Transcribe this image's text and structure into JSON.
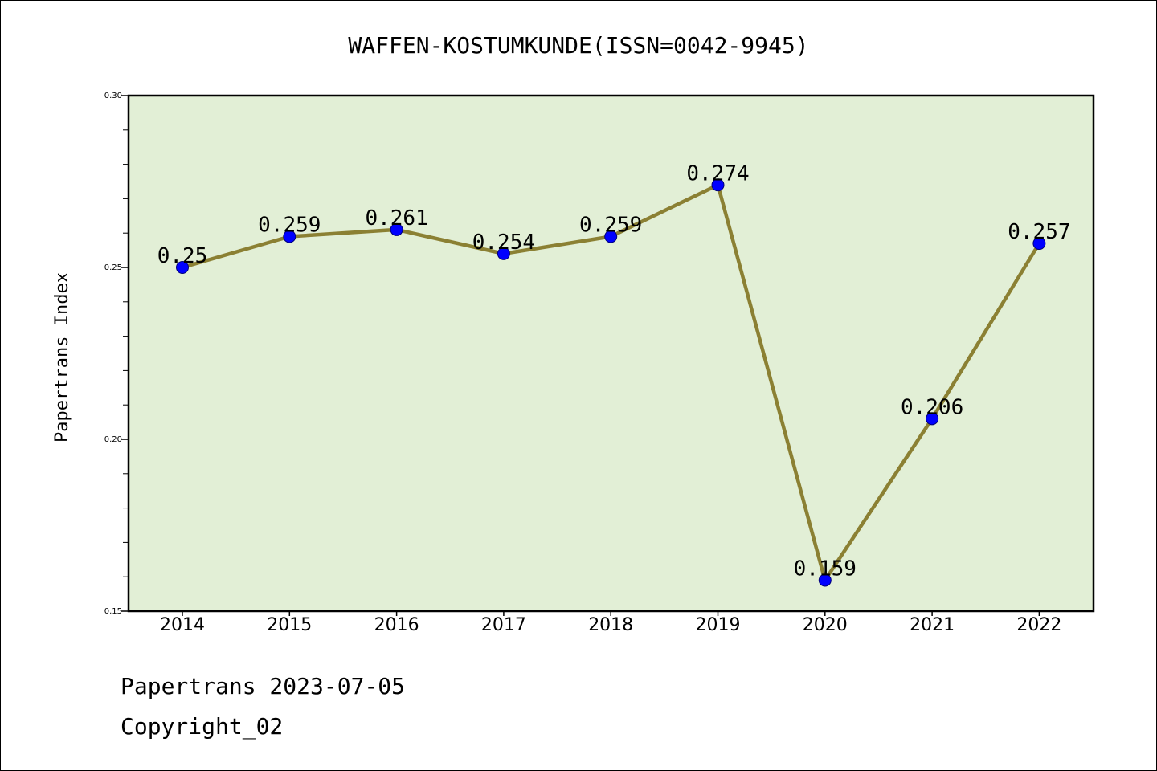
{
  "chart_data": {
    "type": "line",
    "title": "WAFFEN-KOSTUMKUNDE(ISSN=0042-9945)",
    "xlabel": "",
    "ylabel": "Papertrans Index",
    "categories": [
      "2014",
      "2015",
      "2016",
      "2017",
      "2018",
      "2019",
      "2020",
      "2021",
      "2022"
    ],
    "values": [
      0.25,
      0.259,
      0.261,
      0.254,
      0.259,
      0.274,
      0.159,
      0.206,
      0.257
    ],
    "data_labels": [
      "0.25",
      "0.259",
      "0.261",
      "0.254",
      "0.259",
      "0.274",
      "0.159",
      "0.206",
      "0.257"
    ],
    "ylim": [
      0.15,
      0.3
    ],
    "yticks": [
      0.15,
      0.2,
      0.25,
      0.3
    ],
    "ytick_labels": [
      "0.15",
      "0.20",
      "0.25",
      "0.30"
    ],
    "grid": false,
    "colors": {
      "plot_background": "#e2efd6",
      "line": "#8b8033",
      "marker": "#0000ff"
    }
  },
  "footer": {
    "line1": "Papertrans 2023-07-05",
    "line2": "Copyright_02"
  }
}
